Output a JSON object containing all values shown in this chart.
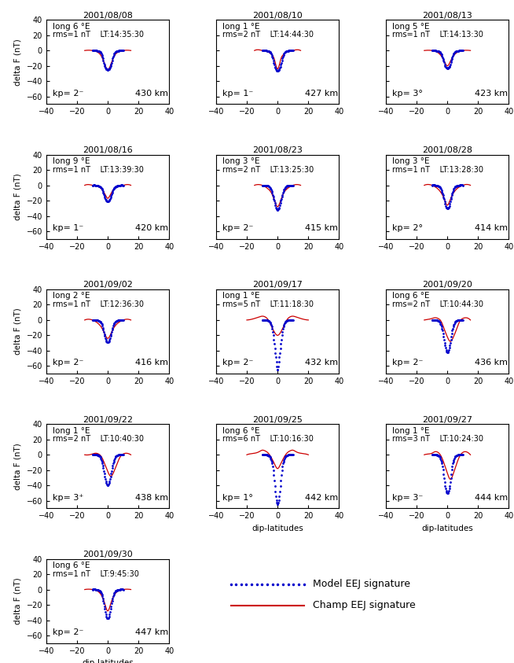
{
  "panels": [
    {
      "date": "2001/08/08",
      "long": 6,
      "rms": 1,
      "lt": "14:35:30",
      "kp": "2⁻",
      "alt": 430,
      "model_x": [
        -10,
        -8,
        -6,
        -5,
        -4,
        -3,
        -2,
        -1,
        0,
        1,
        2,
        3,
        4,
        5,
        6,
        8,
        10
      ],
      "model_y": [
        0,
        0,
        -1,
        -2,
        -5,
        -12,
        -20,
        -24,
        -25,
        -24,
        -20,
        -12,
        -5,
        -2,
        -1,
        0,
        0
      ],
      "champ_x": [
        -15,
        -10,
        -8,
        -6,
        -4,
        -2,
        0,
        2,
        4,
        6,
        8,
        10,
        15
      ],
      "champ_y": [
        0,
        0,
        -1,
        -3,
        -8,
        -18,
        -25,
        -18,
        -8,
        -3,
        -1,
        0,
        0
      ],
      "champ_has_lobes": false
    },
    {
      "date": "2001/08/10",
      "long": 1,
      "rms": 2,
      "lt": "14:44:30",
      "kp": "1⁻",
      "alt": 427,
      "model_x": [
        -10,
        -8,
        -6,
        -5,
        -4,
        -3,
        -2,
        -1,
        0,
        1,
        2,
        3,
        4,
        5,
        6,
        8,
        10
      ],
      "model_y": [
        0,
        0,
        -1,
        -2,
        -5,
        -12,
        -20,
        -25,
        -27,
        -25,
        -20,
        -12,
        -5,
        -2,
        -1,
        0,
        0
      ],
      "champ_x": [
        -15,
        -10,
        -8,
        -6,
        -4,
        -2,
        -1,
        0,
        1,
        2,
        4,
        6,
        8,
        10,
        15
      ],
      "champ_y": [
        0,
        0,
        -1,
        -2,
        -5,
        -12,
        -20,
        -24,
        -20,
        -12,
        -5,
        -2,
        -1,
        0,
        0
      ],
      "champ_has_lobes": false
    },
    {
      "date": "2001/08/13",
      "long": 5,
      "rms": 1,
      "lt": "14:13:30",
      "kp": "3°",
      "alt": 423,
      "model_x": [
        -10,
        -8,
        -6,
        -5,
        -4,
        -3,
        -2,
        -1,
        0,
        1,
        2,
        3,
        4,
        5,
        6,
        8,
        10
      ],
      "model_y": [
        0,
        0,
        -1,
        -2,
        -5,
        -10,
        -17,
        -22,
        -23,
        -22,
        -17,
        -10,
        -5,
        -2,
        -1,
        0,
        0
      ],
      "champ_x": [
        -15,
        -10,
        -8,
        -6,
        -4,
        -2,
        0,
        2,
        4,
        6,
        8,
        10,
        15
      ],
      "champ_y": [
        0,
        0,
        -1,
        -3,
        -7,
        -14,
        -20,
        -14,
        -7,
        -3,
        -1,
        0,
        0
      ],
      "champ_has_lobes": false
    },
    {
      "date": "2001/08/16",
      "long": 9,
      "rms": 1,
      "lt": "13:39:30",
      "kp": "1⁻",
      "alt": 420,
      "model_x": [
        -10,
        -8,
        -6,
        -5,
        -4,
        -3,
        -2,
        -1,
        0,
        1,
        2,
        3,
        4,
        5,
        6,
        8,
        10
      ],
      "model_y": [
        0,
        0,
        -1,
        -2,
        -4,
        -9,
        -15,
        -20,
        -21,
        -20,
        -15,
        -9,
        -4,
        -2,
        -1,
        0,
        0
      ],
      "champ_x": [
        -15,
        -10,
        -8,
        -6,
        -4,
        -2,
        0,
        2,
        4,
        6,
        8,
        10,
        15
      ],
      "champ_y": [
        0,
        0,
        -1,
        -2,
        -5,
        -11,
        -17,
        -11,
        -5,
        -2,
        -1,
        0,
        0
      ],
      "champ_has_lobes": false
    },
    {
      "date": "2001/08/23",
      "long": 3,
      "rms": 2,
      "lt": "13:25:30",
      "kp": "2⁻",
      "alt": 415,
      "model_x": [
        -10,
        -8,
        -6,
        -5,
        -4,
        -3,
        -2,
        -1,
        0,
        1,
        2,
        3,
        4,
        5,
        6,
        8,
        10
      ],
      "model_y": [
        0,
        0,
        -1,
        -3,
        -7,
        -14,
        -22,
        -30,
        -32,
        -30,
        -22,
        -14,
        -7,
        -3,
        -1,
        0,
        0
      ],
      "champ_x": [
        -15,
        -10,
        -8,
        -6,
        -4,
        -2,
        0,
        2,
        4,
        6,
        8,
        10,
        15
      ],
      "champ_y": [
        0,
        0,
        -2,
        -5,
        -10,
        -20,
        -28,
        -20,
        -10,
        -5,
        -2,
        0,
        0
      ],
      "champ_has_lobes": false
    },
    {
      "date": "2001/08/28",
      "long": 3,
      "rms": 1,
      "lt": "13:28:30",
      "kp": "2°",
      "alt": 414,
      "model_x": [
        -10,
        -8,
        -6,
        -5,
        -4,
        -3,
        -2,
        -1,
        0,
        1,
        2,
        3,
        4,
        5,
        6,
        8,
        10
      ],
      "model_y": [
        0,
        0,
        -1,
        -2,
        -6,
        -12,
        -20,
        -28,
        -30,
        -28,
        -20,
        -12,
        -6,
        -2,
        -1,
        0,
        0
      ],
      "champ_x": [
        -15,
        -10,
        -8,
        -6,
        -4,
        -2,
        0,
        2,
        4,
        6,
        8,
        10,
        15
      ],
      "champ_y": [
        0,
        0,
        -2,
        -5,
        -10,
        -18,
        -26,
        -18,
        -10,
        -5,
        -2,
        0,
        0
      ],
      "champ_has_lobes": false
    },
    {
      "date": "2001/09/02",
      "long": 2,
      "rms": 1,
      "lt": "12:36:30",
      "kp": "2⁻",
      "alt": 416,
      "model_x": [
        -10,
        -8,
        -6,
        -5,
        -4,
        -3,
        -2,
        -1,
        0,
        1,
        2,
        3,
        4,
        5,
        6,
        8,
        10
      ],
      "model_y": [
        0,
        0,
        -1,
        -2,
        -5,
        -12,
        -20,
        -27,
        -29,
        -27,
        -20,
        -12,
        -5,
        -2,
        -1,
        0,
        0
      ],
      "champ_x": [
        -15,
        -10,
        -8,
        -6,
        -4,
        -2,
        0,
        2,
        4,
        6,
        8,
        10,
        15
      ],
      "champ_y": [
        0,
        0,
        -2,
        -5,
        -10,
        -18,
        -24,
        -18,
        -10,
        -5,
        -2,
        0,
        0
      ],
      "champ_has_lobes": false
    },
    {
      "date": "2001/09/17",
      "long": 1,
      "rms": 5,
      "lt": "11:18:30",
      "kp": "2⁻",
      "alt": 432,
      "model_x": [
        -10,
        -8,
        -6,
        -5,
        -4,
        -3,
        -2,
        -1,
        0,
        1,
        2,
        3,
        4,
        5,
        6,
        8,
        10
      ],
      "model_y": [
        0,
        0,
        -1,
        -3,
        -8,
        -18,
        -35,
        -52,
        -65,
        -52,
        -35,
        -18,
        -8,
        -3,
        -1,
        0,
        0
      ],
      "champ_x": [
        -20,
        -15,
        -12,
        -10,
        -8,
        -6,
        -4,
        -2,
        0,
        2,
        4,
        6,
        8,
        10,
        12,
        15,
        20
      ],
      "champ_y": [
        0,
        2,
        4,
        5,
        4,
        0,
        -8,
        -16,
        -20,
        -16,
        -8,
        0,
        4,
        5,
        4,
        2,
        0
      ],
      "champ_has_lobes": true
    },
    {
      "date": "2001/09/20",
      "long": 6,
      "rms": 2,
      "lt": "10:44:30",
      "kp": "2⁻",
      "alt": 436,
      "model_x": [
        -10,
        -8,
        -6,
        -5,
        -4,
        -3,
        -2,
        -1,
        0,
        1,
        2,
        3,
        4,
        5,
        6,
        8,
        10
      ],
      "model_y": [
        0,
        0,
        -1,
        -3,
        -8,
        -16,
        -28,
        -38,
        -42,
        -38,
        -28,
        -16,
        -8,
        -3,
        -1,
        0,
        0
      ],
      "champ_x": [
        -15,
        -12,
        -10,
        -8,
        -6,
        -4,
        -2,
        0,
        2,
        4,
        6,
        8,
        10,
        12,
        15
      ],
      "champ_y": [
        0,
        1,
        2,
        3,
        2,
        -2,
        -12,
        -22,
        -28,
        -22,
        -12,
        -2,
        2,
        3,
        0
      ],
      "champ_has_lobes": false
    },
    {
      "date": "2001/09/22",
      "long": 1,
      "rms": 2,
      "lt": "10:40:30",
      "kp": "3⁺",
      "alt": 438,
      "model_x": [
        -10,
        -8,
        -6,
        -5,
        -4,
        -3,
        -2,
        -1,
        0,
        1,
        2,
        3,
        4,
        5,
        6,
        8,
        10
      ],
      "model_y": [
        0,
        0,
        -1,
        -3,
        -8,
        -16,
        -27,
        -36,
        -40,
        -36,
        -27,
        -16,
        -8,
        -3,
        -1,
        0,
        0
      ],
      "champ_x": [
        -15,
        -12,
        -10,
        -8,
        -6,
        -4,
        -2,
        0,
        2,
        4,
        6,
        8,
        10,
        12,
        15
      ],
      "champ_y": [
        0,
        0,
        1,
        2,
        1,
        -3,
        -12,
        -22,
        -28,
        -22,
        -12,
        -3,
        1,
        2,
        0
      ],
      "champ_has_lobes": false
    },
    {
      "date": "2001/09/25",
      "long": 6,
      "rms": 6,
      "lt": "10:16:30",
      "kp": "1°",
      "alt": 442,
      "model_x": [
        -10,
        -8,
        -6,
        -5,
        -4,
        -3,
        -2,
        -1,
        0,
        1,
        2,
        3,
        4,
        5,
        6,
        8,
        10
      ],
      "model_y": [
        0,
        0,
        -1,
        -3,
        -8,
        -18,
        -38,
        -57,
        -65,
        -57,
        -38,
        -18,
        -8,
        -3,
        -1,
        0,
        0
      ],
      "champ_x": [
        -20,
        -15,
        -12,
        -10,
        -8,
        -6,
        -4,
        -2,
        0,
        2,
        4,
        6,
        8,
        10,
        12,
        15,
        20
      ],
      "champ_y": [
        0,
        2,
        4,
        6,
        5,
        2,
        -4,
        -12,
        -18,
        -12,
        -4,
        2,
        5,
        6,
        4,
        2,
        0
      ],
      "champ_has_lobes": true
    },
    {
      "date": "2001/09/27",
      "long": 1,
      "rms": 3,
      "lt": "10:24:30",
      "kp": "3⁻",
      "alt": 444,
      "model_x": [
        -10,
        -8,
        -6,
        -5,
        -4,
        -3,
        -2,
        -1,
        0,
        1,
        2,
        3,
        4,
        5,
        6,
        8,
        10
      ],
      "model_y": [
        0,
        0,
        -1,
        -3,
        -8,
        -18,
        -34,
        -46,
        -50,
        -46,
        -34,
        -18,
        -8,
        -3,
        -1,
        0,
        0
      ],
      "champ_x": [
        -15,
        -12,
        -10,
        -8,
        -6,
        -4,
        -2,
        0,
        2,
        4,
        6,
        8,
        10,
        12,
        15
      ],
      "champ_y": [
        0,
        1,
        2,
        4,
        3,
        -2,
        -12,
        -24,
        -32,
        -24,
        -12,
        -2,
        3,
        4,
        0
      ],
      "champ_has_lobes": false
    },
    {
      "date": "2001/09/30",
      "long": 6,
      "rms": 1,
      "lt": "9:45:30",
      "kp": "2⁻",
      "alt": 447,
      "model_x": [
        -10,
        -8,
        -6,
        -5,
        -4,
        -3,
        -2,
        -1,
        0,
        1,
        2,
        3,
        4,
        5,
        6,
        8,
        10
      ],
      "model_y": [
        0,
        0,
        -1,
        -2,
        -6,
        -14,
        -24,
        -34,
        -38,
        -34,
        -24,
        -14,
        -6,
        -2,
        -1,
        0,
        0
      ],
      "champ_x": [
        -15,
        -10,
        -8,
        -6,
        -4,
        -2,
        0,
        2,
        4,
        6,
        8,
        10,
        15
      ],
      "champ_y": [
        0,
        0,
        -1,
        -3,
        -8,
        -18,
        -28,
        -18,
        -8,
        -3,
        -1,
        0,
        0
      ],
      "champ_has_lobes": false
    }
  ],
  "model_color": "#0000cc",
  "champ_color": "#cc0000",
  "xlim": [
    -40,
    40
  ],
  "ylim": [
    -70,
    40
  ],
  "yticks": [
    -60,
    -40,
    -20,
    0,
    20,
    40
  ],
  "xticks": [
    -40,
    -20,
    0,
    20,
    40
  ],
  "xlabel": "dip-latitudes",
  "ylabel": "delta F (nT)"
}
